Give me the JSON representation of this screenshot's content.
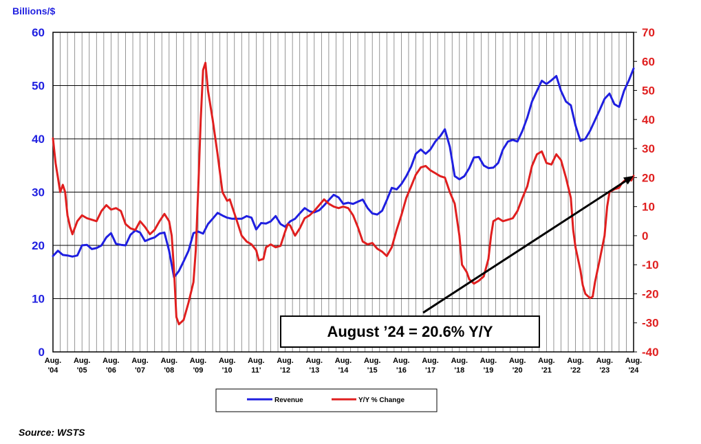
{
  "chart_data": {
    "type": "line",
    "y_left_label": "Billions/$",
    "y_left_range": [
      0,
      60
    ],
    "y_left_ticks": [
      "0",
      "10",
      "20",
      "30",
      "40",
      "50",
      "60"
    ],
    "y_right_range": [
      -40,
      70
    ],
    "y_right_ticks": [
      "-40",
      "-30",
      "-20",
      "-10",
      "0",
      "10",
      "20",
      "30",
      "40",
      "50",
      "60",
      "70"
    ],
    "x_range": [
      2004.58,
      2024.58
    ],
    "x_labels": [
      {
        "x": 2004.58,
        "l1": "Aug.",
        "l2": "'04"
      },
      {
        "x": 2005.58,
        "l1": "Aug.",
        "l2": "'05"
      },
      {
        "x": 2006.58,
        "l1": "Aug.",
        "l2": "'06"
      },
      {
        "x": 2007.58,
        "l1": "Aug.",
        "l2": "'07"
      },
      {
        "x": 2008.58,
        "l1": "Aug.",
        "l2": "'08"
      },
      {
        "x": 2009.58,
        "l1": "Aug.",
        "l2": "'09"
      },
      {
        "x": 2010.58,
        "l1": "Aug.",
        "l2": "'10"
      },
      {
        "x": 2011.58,
        "l1": "Aug.",
        "l2": "11'"
      },
      {
        "x": 2012.58,
        "l1": "Aug.",
        "l2": "'12"
      },
      {
        "x": 2013.58,
        "l1": "Aug.",
        "l2": "'13"
      },
      {
        "x": 2014.58,
        "l1": "Aug.",
        "l2": "'14"
      },
      {
        "x": 2015.58,
        "l1": "Aug.",
        "l2": "'15"
      },
      {
        "x": 2016.58,
        "l1": "Aug.",
        "l2": "'16"
      },
      {
        "x": 2017.58,
        "l1": "Aug.",
        "l2": "'17"
      },
      {
        "x": 2018.58,
        "l1": "Aug.",
        "l2": "'18"
      },
      {
        "x": 2019.58,
        "l1": "Aug.",
        "l2": "'19"
      },
      {
        "x": 2020.58,
        "l1": "Aug.",
        "l2": "'20"
      },
      {
        "x": 2021.58,
        "l1": "Aug.",
        "l2": "'21"
      },
      {
        "x": 2022.58,
        "l1": "Aug.",
        "l2": "'22"
      },
      {
        "x": 2023.58,
        "l1": "Aug.",
        "l2": "'23"
      },
      {
        "x": 2024.58,
        "l1": "Aug.",
        "l2": "'24"
      }
    ],
    "series": [
      {
        "name": "Revenue",
        "axis": "left",
        "color": "#1f1fe0",
        "points": [
          [
            2004.58,
            18.0
          ],
          [
            2004.75,
            19.0
          ],
          [
            2004.92,
            18.2
          ],
          [
            2005.08,
            18.1
          ],
          [
            2005.25,
            17.9
          ],
          [
            2005.42,
            18.1
          ],
          [
            2005.58,
            20.0
          ],
          [
            2005.75,
            20.1
          ],
          [
            2005.92,
            19.3
          ],
          [
            2006.08,
            19.5
          ],
          [
            2006.25,
            20.0
          ],
          [
            2006.42,
            21.5
          ],
          [
            2006.58,
            22.3
          ],
          [
            2006.75,
            20.3
          ],
          [
            2006.92,
            20.1
          ],
          [
            2007.08,
            20.0
          ],
          [
            2007.25,
            22.0
          ],
          [
            2007.42,
            22.8
          ],
          [
            2007.58,
            22.4
          ],
          [
            2007.75,
            20.8
          ],
          [
            2007.92,
            21.2
          ],
          [
            2008.08,
            21.5
          ],
          [
            2008.25,
            22.2
          ],
          [
            2008.42,
            22.4
          ],
          [
            2008.58,
            19.0
          ],
          [
            2008.75,
            14.0
          ],
          [
            2008.92,
            15.2
          ],
          [
            2009.08,
            17.0
          ],
          [
            2009.25,
            19.0
          ],
          [
            2009.42,
            22.3
          ],
          [
            2009.58,
            22.6
          ],
          [
            2009.75,
            22.2
          ],
          [
            2009.92,
            24.0
          ],
          [
            2010.08,
            25.0
          ],
          [
            2010.25,
            26.1
          ],
          [
            2010.42,
            25.6
          ],
          [
            2010.58,
            25.2
          ],
          [
            2010.75,
            25.0
          ],
          [
            2010.92,
            25.0
          ],
          [
            2011.08,
            25.0
          ],
          [
            2011.25,
            25.5
          ],
          [
            2011.42,
            25.2
          ],
          [
            2011.58,
            23.0
          ],
          [
            2011.75,
            24.2
          ],
          [
            2011.92,
            24.1
          ],
          [
            2012.08,
            24.5
          ],
          [
            2012.25,
            25.5
          ],
          [
            2012.42,
            24.0
          ],
          [
            2012.58,
            23.5
          ],
          [
            2012.75,
            24.5
          ],
          [
            2012.92,
            25.0
          ],
          [
            2013.08,
            26.0
          ],
          [
            2013.25,
            27.0
          ],
          [
            2013.42,
            26.4
          ],
          [
            2013.58,
            26.2
          ],
          [
            2013.75,
            26.6
          ],
          [
            2013.92,
            27.5
          ],
          [
            2014.08,
            28.5
          ],
          [
            2014.25,
            29.5
          ],
          [
            2014.42,
            29.0
          ],
          [
            2014.58,
            27.8
          ],
          [
            2014.75,
            28.0
          ],
          [
            2014.92,
            27.8
          ],
          [
            2015.08,
            28.2
          ],
          [
            2015.25,
            28.6
          ],
          [
            2015.42,
            27.0
          ],
          [
            2015.58,
            26.0
          ],
          [
            2015.75,
            25.8
          ],
          [
            2015.92,
            26.5
          ],
          [
            2016.08,
            28.5
          ],
          [
            2016.25,
            30.8
          ],
          [
            2016.42,
            30.5
          ],
          [
            2016.58,
            31.5
          ],
          [
            2016.75,
            33.0
          ],
          [
            2016.92,
            34.8
          ],
          [
            2017.08,
            37.2
          ],
          [
            2017.25,
            38.0
          ],
          [
            2017.42,
            37.2
          ],
          [
            2017.58,
            38.0
          ],
          [
            2017.75,
            39.5
          ],
          [
            2017.92,
            40.5
          ],
          [
            2018.08,
            41.8
          ],
          [
            2018.25,
            38.5
          ],
          [
            2018.42,
            33.0
          ],
          [
            2018.58,
            32.4
          ],
          [
            2018.75,
            33.0
          ],
          [
            2018.92,
            34.5
          ],
          [
            2019.08,
            36.5
          ],
          [
            2019.25,
            36.6
          ],
          [
            2019.42,
            35.0
          ],
          [
            2019.58,
            34.5
          ],
          [
            2019.75,
            34.6
          ],
          [
            2019.92,
            35.5
          ],
          [
            2020.08,
            38.0
          ],
          [
            2020.25,
            39.5
          ],
          [
            2020.42,
            39.8
          ],
          [
            2020.58,
            39.5
          ],
          [
            2020.75,
            41.5
          ],
          [
            2020.92,
            44.0
          ],
          [
            2021.08,
            47.0
          ],
          [
            2021.25,
            49.0
          ],
          [
            2021.42,
            50.9
          ],
          [
            2021.58,
            50.3
          ],
          [
            2021.75,
            51.0
          ],
          [
            2021.92,
            51.8
          ],
          [
            2022.08,
            49.0
          ],
          [
            2022.25,
            47.0
          ],
          [
            2022.42,
            46.3
          ],
          [
            2022.58,
            42.5
          ],
          [
            2022.75,
            39.6
          ],
          [
            2022.92,
            40.0
          ],
          [
            2023.08,
            41.5
          ],
          [
            2023.25,
            43.5
          ],
          [
            2023.42,
            45.5
          ],
          [
            2023.58,
            47.5
          ],
          [
            2023.75,
            48.5
          ],
          [
            2023.92,
            46.5
          ],
          [
            2024.08,
            46.0
          ],
          [
            2024.25,
            49.0
          ],
          [
            2024.42,
            51.0
          ],
          [
            2024.58,
            53.2
          ]
        ]
      },
      {
        "name": "Y/Y % Change",
        "axis": "right",
        "color": "#e01f1f",
        "points": [
          [
            2004.58,
            33.5
          ],
          [
            2004.67,
            25.0
          ],
          [
            2004.75,
            20.0
          ],
          [
            2004.83,
            15.0
          ],
          [
            2004.92,
            17.5
          ],
          [
            2005.0,
            15.0
          ],
          [
            2005.08,
            7.0
          ],
          [
            2005.17,
            3.0
          ],
          [
            2005.25,
            0.5
          ],
          [
            2005.42,
            5.0
          ],
          [
            2005.58,
            7.0
          ],
          [
            2005.75,
            6.0
          ],
          [
            2005.92,
            5.5
          ],
          [
            2006.08,
            5.0
          ],
          [
            2006.25,
            8.5
          ],
          [
            2006.42,
            10.5
          ],
          [
            2006.58,
            9.0
          ],
          [
            2006.75,
            9.5
          ],
          [
            2006.92,
            8.5
          ],
          [
            2007.08,
            4.0
          ],
          [
            2007.25,
            2.5
          ],
          [
            2007.42,
            2.0
          ],
          [
            2007.58,
            5.0
          ],
          [
            2007.75,
            3.0
          ],
          [
            2007.92,
            0.5
          ],
          [
            2008.08,
            2.0
          ],
          [
            2008.25,
            5.0
          ],
          [
            2008.42,
            7.5
          ],
          [
            2008.58,
            5.0
          ],
          [
            2008.67,
            0.0
          ],
          [
            2008.75,
            -12.0
          ],
          [
            2008.83,
            -28.0
          ],
          [
            2008.92,
            -30.5
          ],
          [
            2009.08,
            -29.0
          ],
          [
            2009.25,
            -23.0
          ],
          [
            2009.42,
            -16.0
          ],
          [
            2009.5,
            -5.0
          ],
          [
            2009.58,
            15.0
          ],
          [
            2009.67,
            40.0
          ],
          [
            2009.75,
            57.0
          ],
          [
            2009.83,
            59.5
          ],
          [
            2009.92,
            50.0
          ],
          [
            2010.08,
            40.0
          ],
          [
            2010.25,
            28.0
          ],
          [
            2010.42,
            15.0
          ],
          [
            2010.58,
            12.0
          ],
          [
            2010.67,
            12.5
          ],
          [
            2010.75,
            10.0
          ],
          [
            2010.92,
            5.0
          ],
          [
            2011.08,
            0.0
          ],
          [
            2011.25,
            -2.0
          ],
          [
            2011.42,
            -3.0
          ],
          [
            2011.58,
            -5.0
          ],
          [
            2011.67,
            -8.5
          ],
          [
            2011.83,
            -8.0
          ],
          [
            2011.92,
            -4.0
          ],
          [
            2012.08,
            -3.0
          ],
          [
            2012.25,
            -4.0
          ],
          [
            2012.42,
            -3.5
          ],
          [
            2012.58,
            1.5
          ],
          [
            2012.67,
            4.0
          ],
          [
            2012.75,
            3.5
          ],
          [
            2012.92,
            0.0
          ],
          [
            2013.08,
            2.5
          ],
          [
            2013.25,
            6.0
          ],
          [
            2013.42,
            7.0
          ],
          [
            2013.58,
            8.5
          ],
          [
            2013.75,
            10.5
          ],
          [
            2013.92,
            12.5
          ],
          [
            2014.08,
            11.0
          ],
          [
            2014.25,
            10.0
          ],
          [
            2014.42,
            9.5
          ],
          [
            2014.58,
            10.0
          ],
          [
            2014.75,
            9.5
          ],
          [
            2014.92,
            7.0
          ],
          [
            2015.08,
            3.0
          ],
          [
            2015.25,
            -2.0
          ],
          [
            2015.42,
            -3.0
          ],
          [
            2015.58,
            -2.5
          ],
          [
            2015.75,
            -4.5
          ],
          [
            2015.92,
            -5.5
          ],
          [
            2016.08,
            -7.0
          ],
          [
            2016.25,
            -4.0
          ],
          [
            2016.42,
            2.0
          ],
          [
            2016.58,
            7.0
          ],
          [
            2016.75,
            13.0
          ],
          [
            2016.92,
            17.0
          ],
          [
            2017.08,
            21.0
          ],
          [
            2017.25,
            23.5
          ],
          [
            2017.42,
            24.0
          ],
          [
            2017.58,
            22.5
          ],
          [
            2017.75,
            21.5
          ],
          [
            2017.92,
            20.5
          ],
          [
            2018.08,
            20.0
          ],
          [
            2018.25,
            15.0
          ],
          [
            2018.42,
            11.0
          ],
          [
            2018.58,
            0.0
          ],
          [
            2018.67,
            -10.0
          ],
          [
            2018.83,
            -12.5
          ],
          [
            2018.92,
            -15.0
          ],
          [
            2019.08,
            -16.5
          ],
          [
            2019.25,
            -15.5
          ],
          [
            2019.42,
            -14.0
          ],
          [
            2019.58,
            -8.0
          ],
          [
            2019.67,
            0.0
          ],
          [
            2019.75,
            5.0
          ],
          [
            2019.92,
            6.0
          ],
          [
            2020.08,
            5.0
          ],
          [
            2020.25,
            5.5
          ],
          [
            2020.42,
            6.0
          ],
          [
            2020.58,
            8.5
          ],
          [
            2020.75,
            13.0
          ],
          [
            2020.92,
            17.0
          ],
          [
            2021.08,
            24.0
          ],
          [
            2021.25,
            28.0
          ],
          [
            2021.42,
            29.0
          ],
          [
            2021.58,
            25.0
          ],
          [
            2021.75,
            24.5
          ],
          [
            2021.92,
            28.0
          ],
          [
            2022.08,
            26.0
          ],
          [
            2022.25,
            20.0
          ],
          [
            2022.42,
            13.0
          ],
          [
            2022.5,
            2.0
          ],
          [
            2022.58,
            -4.0
          ],
          [
            2022.75,
            -12.0
          ],
          [
            2022.83,
            -17.0
          ],
          [
            2022.92,
            -20.0
          ],
          [
            2023.08,
            -21.5
          ],
          [
            2023.17,
            -21.0
          ],
          [
            2023.25,
            -16.0
          ],
          [
            2023.42,
            -8.0
          ],
          [
            2023.58,
            0.0
          ],
          [
            2023.67,
            10.0
          ],
          [
            2023.75,
            15.0
          ],
          [
            2023.83,
            15.5
          ],
          [
            2023.92,
            16.0
          ],
          [
            2024.08,
            16.5
          ],
          [
            2024.17,
            18.0
          ],
          [
            2024.33,
            19.5
          ],
          [
            2024.42,
            19.8
          ],
          [
            2024.5,
            19.0
          ],
          [
            2024.58,
            20.6
          ]
        ]
      }
    ],
    "trend_arrow": {
      "from": [
        2017.33,
        -26.5
      ],
      "to": [
        2024.58,
        20.6
      ]
    },
    "annotation": "August ’24 = 20.6% Y/Y",
    "legend": {
      "placement": "bottom-center",
      "items": [
        "Revenue",
        "Y/Y % Change"
      ]
    },
    "grid": true,
    "source": "Source: WSTS"
  }
}
